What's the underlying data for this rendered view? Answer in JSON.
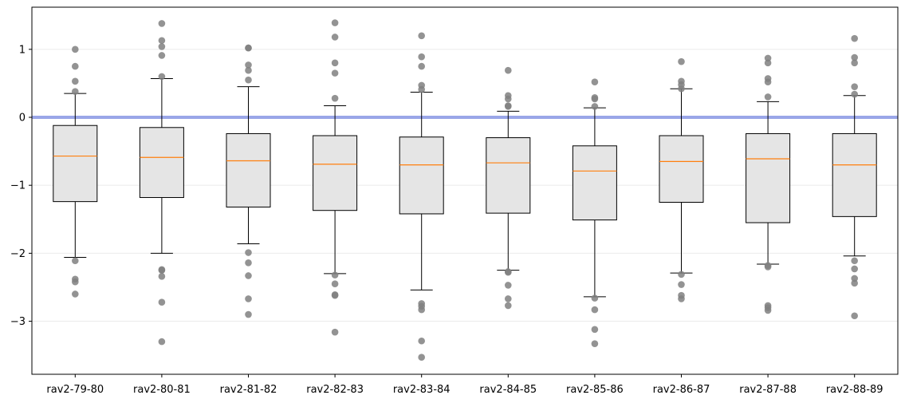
{
  "chart_data": {
    "type": "box",
    "title": "",
    "xlabel": "",
    "ylabel": "",
    "ylim": [
      -3.78,
      1.62
    ],
    "yticks": [
      1,
      0,
      -1,
      -2,
      -3
    ],
    "ytick_labels": [
      "1",
      "0",
      "−1",
      "−2",
      "−3"
    ],
    "grid": "horizontal",
    "reference_line": {
      "y": 0,
      "color": "#9aa6e8"
    },
    "colors": {
      "box_fill": "#e5e5e5",
      "median": "#ff7f0e",
      "outlier": "#808080",
      "edge": "#000000"
    },
    "categories": [
      "rav2-79-80",
      "rav2-80-81",
      "rav2-81-82",
      "rav2-82-83",
      "rav2-83-84",
      "rav2-84-85",
      "rav2-85-86",
      "rav2-86-87",
      "rav2-87-88",
      "rav2-88-89"
    ],
    "boxes": [
      {
        "whislo": -2.06,
        "q1": -1.24,
        "med": -0.57,
        "q3": -0.12,
        "whishi": 0.35,
        "fliers": [
          1.0,
          0.75,
          0.53,
          0.38,
          -2.11,
          -2.38,
          -2.42,
          -2.6
        ]
      },
      {
        "whislo": -2.0,
        "q1": -1.18,
        "med": -0.59,
        "q3": -0.15,
        "whishi": 0.57,
        "fliers": [
          1.38,
          1.13,
          1.04,
          0.91,
          0.6,
          -2.24,
          -2.25,
          -2.34,
          -2.72,
          -3.3
        ]
      },
      {
        "whislo": -1.86,
        "q1": -1.32,
        "med": -0.64,
        "q3": -0.24,
        "whishi": 0.45,
        "fliers": [
          1.02,
          1.02,
          0.77,
          0.69,
          0.55,
          -1.99,
          -2.14,
          -2.33,
          -2.67,
          -2.9
        ]
      },
      {
        "whislo": -2.3,
        "q1": -1.37,
        "med": -0.69,
        "q3": -0.27,
        "whishi": 0.17,
        "fliers": [
          1.39,
          1.18,
          0.8,
          0.65,
          0.28,
          -2.32,
          -2.45,
          -2.61,
          -2.62,
          -3.16
        ]
      },
      {
        "whislo": -2.54,
        "q1": -1.42,
        "med": -0.7,
        "q3": -0.29,
        "whishi": 0.37,
        "fliers": [
          1.2,
          0.89,
          0.75,
          0.47,
          0.41,
          -2.74,
          -2.78,
          -2.83,
          -3.29,
          -3.53
        ]
      },
      {
        "whislo": -2.25,
        "q1": -1.41,
        "med": -0.67,
        "q3": -0.3,
        "whishi": 0.09,
        "fliers": [
          0.69,
          0.32,
          0.27,
          0.17,
          0.16,
          -2.27,
          -2.28,
          -2.47,
          -2.67,
          -2.77
        ]
      },
      {
        "whislo": -2.64,
        "q1": -1.51,
        "med": -0.79,
        "q3": -0.42,
        "whishi": 0.14,
        "fliers": [
          0.52,
          0.29,
          0.27,
          0.16,
          -2.66,
          -2.83,
          -3.12,
          -3.33
        ]
      },
      {
        "whislo": -2.29,
        "q1": -1.25,
        "med": -0.65,
        "q3": -0.27,
        "whishi": 0.42,
        "fliers": [
          0.82,
          0.53,
          0.48,
          0.42,
          -2.31,
          -2.46,
          -2.62,
          -2.67
        ]
      },
      {
        "whislo": -2.16,
        "q1": -1.55,
        "med": -0.61,
        "q3": -0.24,
        "whishi": 0.23,
        "fliers": [
          0.87,
          0.8,
          0.57,
          0.52,
          0.3,
          -2.18,
          -2.2,
          -2.77,
          -2.8,
          -2.84
        ]
      },
      {
        "whislo": -2.04,
        "q1": -1.46,
        "med": -0.7,
        "q3": -0.24,
        "whishi": 0.32,
        "fliers": [
          1.16,
          0.88,
          0.8,
          0.45,
          0.34,
          -2.11,
          -2.23,
          -2.37,
          -2.44,
          -2.92
        ]
      }
    ]
  }
}
